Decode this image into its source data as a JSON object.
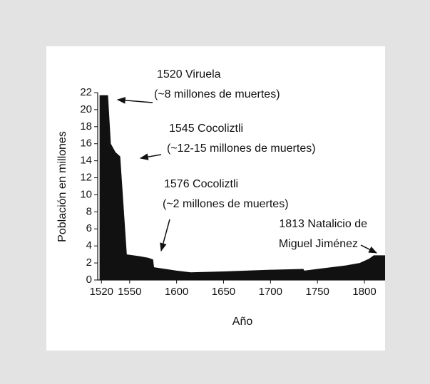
{
  "chart_data": {
    "type": "area",
    "x": [
      1518,
      1527,
      1530,
      1535,
      1540,
      1547,
      1560,
      1570,
      1575,
      1576,
      1600,
      1615,
      1650,
      1700,
      1735,
      1736,
      1750,
      1780,
      1795,
      1805,
      1810,
      1822
    ],
    "values": [
      21.7,
      21.7,
      16,
      15,
      14.5,
      3,
      2.8,
      2.6,
      2.4,
      1.5,
      1.1,
      0.9,
      1.0,
      1.2,
      1.3,
      1.1,
      1.3,
      1.7,
      2.0,
      2.5,
      2.9,
      2.9
    ],
    "color": "#111111",
    "xlabel": "Año",
    "ylabel": "Población en millones",
    "xlim": [
      1516,
      1822
    ],
    "ylim": [
      0,
      22
    ],
    "xticks": [
      1520,
      1550,
      1600,
      1650,
      1700,
      1750,
      1800
    ],
    "yticks": [
      0,
      2,
      4,
      6,
      8,
      10,
      12,
      14,
      16,
      18,
      20,
      22
    ],
    "annotations": [
      [
        "1520 Viruela",
        "(~8 millones de muertes)"
      ],
      [
        "1545 Cocoliztli",
        "(~12-15 millones de muertes)"
      ],
      [
        "1576 Cocoliztli",
        "(~2 millones de muertes)"
      ],
      [
        "1813 Natalicio de",
        "Miguel Jiménez"
      ]
    ]
  }
}
